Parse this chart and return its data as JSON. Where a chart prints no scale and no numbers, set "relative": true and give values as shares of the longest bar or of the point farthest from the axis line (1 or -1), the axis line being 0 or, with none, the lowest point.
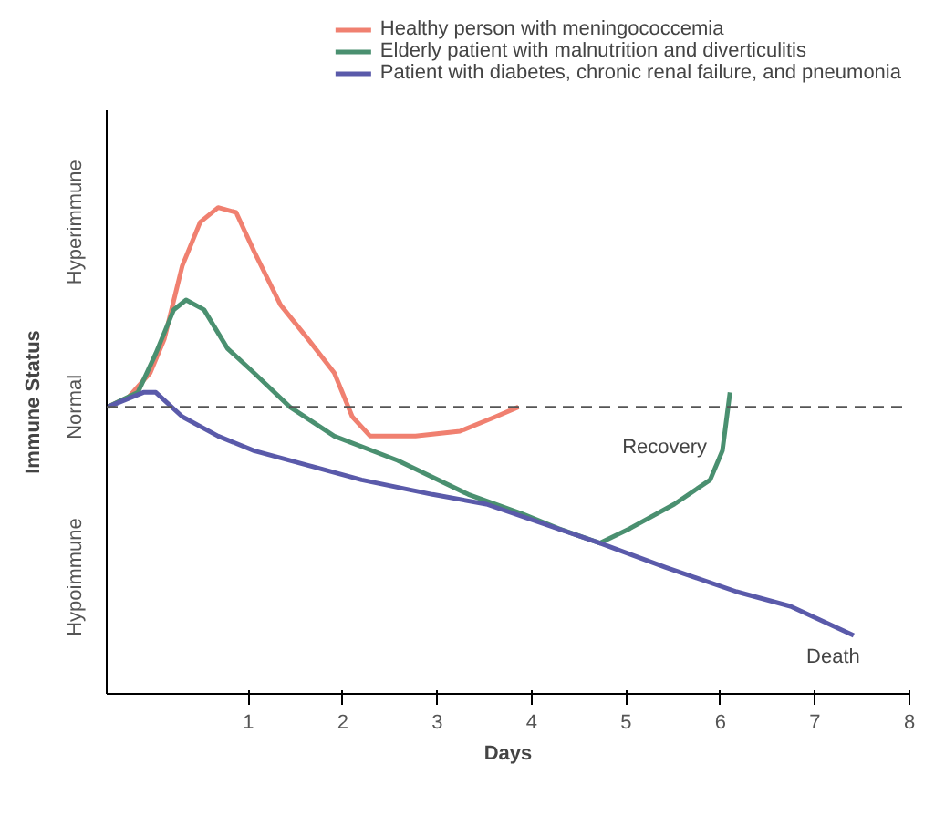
{
  "chart_data": {
    "type": "line",
    "xlabel": "Days",
    "ylabel": "Immune Status",
    "relative": true,
    "xlim": [
      -0.5,
      8
    ],
    "xticks": [
      1,
      2,
      3,
      4,
      5,
      6,
      7,
      8
    ],
    "grid": false,
    "legend": "top",
    "line_style": "solid",
    "series": [
      {
        "name": "Healthy person with meningococcemia",
        "color": "#f08070",
        "x": [
          -0.49,
          -0.27,
          -0.04,
          0.11,
          0.3,
          0.49,
          0.68,
          0.87,
          1.06,
          1.34,
          1.63,
          1.91,
          2.1,
          2.29,
          2.77,
          3.24,
          3.62,
          3.86
        ],
        "values": [
          0.59,
          0.61,
          0.66,
          0.73,
          0.88,
          0.97,
          1,
          0.99,
          0.91,
          0.8,
          0.73,
          0.66,
          0.57,
          0.53,
          0.53,
          0.54,
          0.57,
          0.59
        ]
      },
      {
        "name": "Elderly patient with malnutrition and diverticulitis",
        "color": "#4a9070",
        "x": [
          -0.49,
          -0.17,
          0.02,
          0.21,
          0.34,
          0.53,
          0.78,
          1.06,
          1.44,
          1.91,
          2.58,
          3.33,
          3.9,
          4.28,
          4.72,
          5.04,
          5.51,
          5.89,
          6.02,
          6.1
        ],
        "values": [
          0.59,
          0.62,
          0.7,
          0.79,
          0.81,
          0.79,
          0.71,
          0.66,
          0.59,
          0.53,
          0.48,
          0.41,
          0.37,
          0.34,
          0.31,
          0.34,
          0.39,
          0.44,
          0.5,
          0.62
        ]
      },
      {
        "name": "Patient with diabetes, chronic renal failure, and pneumonia",
        "color": "#5a5aaa",
        "x": [
          -0.49,
          -0.11,
          0.02,
          0.3,
          0.68,
          1.06,
          1.63,
          2.2,
          2.95,
          3.52,
          4.72,
          5.42,
          6.17,
          6.74,
          7.41
        ],
        "values": [
          0.59,
          0.62,
          0.62,
          0.57,
          0.53,
          0.5,
          0.47,
          0.44,
          0.41,
          0.39,
          0.31,
          0.26,
          0.21,
          0.18,
          0.12
        ]
      }
    ],
    "ref_lines": [
      {
        "axis": "y",
        "value": 0.59,
        "line_style": "dashed",
        "color": "#555555"
      }
    ],
    "annotations": [
      "Hyperimmune",
      "Normal",
      "Hypoimmune",
      "Recovery",
      "Death"
    ]
  }
}
